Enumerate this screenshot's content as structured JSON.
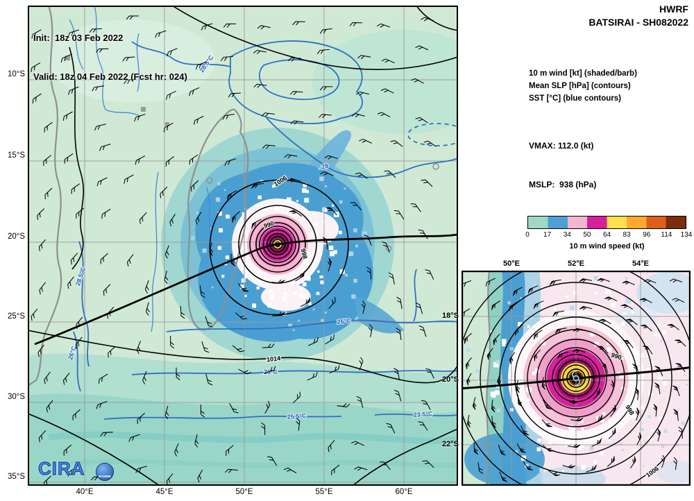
{
  "header": {
    "init_line": "Init:  18z 03 Feb 2022",
    "valid_line": "Valid: 18z 04 Feb 2022 (Fcst hr: 024)",
    "model": "HWRF",
    "storm_id": "BATSIRAI - SH082022",
    "legend_lines": [
      "10 m wind [kt] (shaded/barb)",
      "Mean SLP [hPa] (contours)",
      "SST [°C] (blue contours)"
    ],
    "vmax_line": "VMAX: 112.0 (kt)",
    "mslp_line": "MSLP:  938 (hPa)"
  },
  "colorbar": {
    "label": "10 m wind speed (kt)",
    "ticks": [
      "0",
      "17",
      "34",
      "50",
      "64",
      "83",
      "96",
      "114",
      "134"
    ],
    "colors": [
      "#9fd9c4",
      "#4f9fd4",
      "#f2b6cf",
      "#d6219c",
      "#ffe04d",
      "#ffa930",
      "#dd5f1d",
      "#7c2d0e"
    ]
  },
  "main_map": {
    "lat_labels": [
      "10°S",
      "15°S",
      "20°S",
      "25°S",
      "30°S",
      "35°S"
    ],
    "lon_labels": [
      "40°E",
      "45°E",
      "50°E",
      "55°E",
      "60°E"
    ],
    "slp_labels": [
      "990",
      "998",
      "1006",
      "1014"
    ],
    "sst_labels": [
      "28.5°C",
      "28",
      "26°C",
      "26°C",
      "25.5°C",
      "23.5°C",
      "28.5°C",
      "26°C"
    ]
  },
  "inset": {
    "lon_labels": [
      "50°E",
      "52°E",
      "54°E"
    ],
    "lat_labels": [
      "18°S",
      "20°S",
      "22°S"
    ],
    "slp_labels": [
      "990",
      "998",
      "1006"
    ]
  },
  "logos": {
    "cira": "CIRA",
    "rammb": "RAMMB"
  },
  "chart_data": {
    "type": "heatmap",
    "title": "HWRF BATSIRAI - SH082022",
    "init": "18z 03 Feb 2022",
    "valid": "18z 04 Feb 2022",
    "forecast_hour": 24,
    "vmax_kt": 112.0,
    "mslp_hpa": 938,
    "shaded_field": "10 m wind (kt)",
    "contour_fields": [
      "Mean SLP (hPa)",
      "SST (°C)"
    ],
    "wind_scale_kt": [
      0,
      17,
      34,
      50,
      64,
      83,
      96,
      114,
      134
    ],
    "legend_position": "right",
    "grid": true,
    "main_map": {
      "lon_ticks_deg_e": [
        40,
        45,
        50,
        55,
        60
      ],
      "lat_ticks_deg_s": [
        10,
        15,
        20,
        25,
        30,
        35
      ],
      "slp_contours_hpa": [
        990,
        998,
        1006,
        1014
      ],
      "sst_contours_c": [
        28.5,
        28,
        26,
        25.5,
        23.5
      ],
      "storm_center": {
        "lon_deg_e": 52.1,
        "lat_deg_s": 20.2
      }
    },
    "inset": {
      "lon_ticks_deg_e": [
        50,
        52,
        54
      ],
      "lat_ticks_deg_s": [
        18,
        20,
        22
      ],
      "slp_contours_hpa": [
        990,
        998,
        1006
      ]
    }
  }
}
